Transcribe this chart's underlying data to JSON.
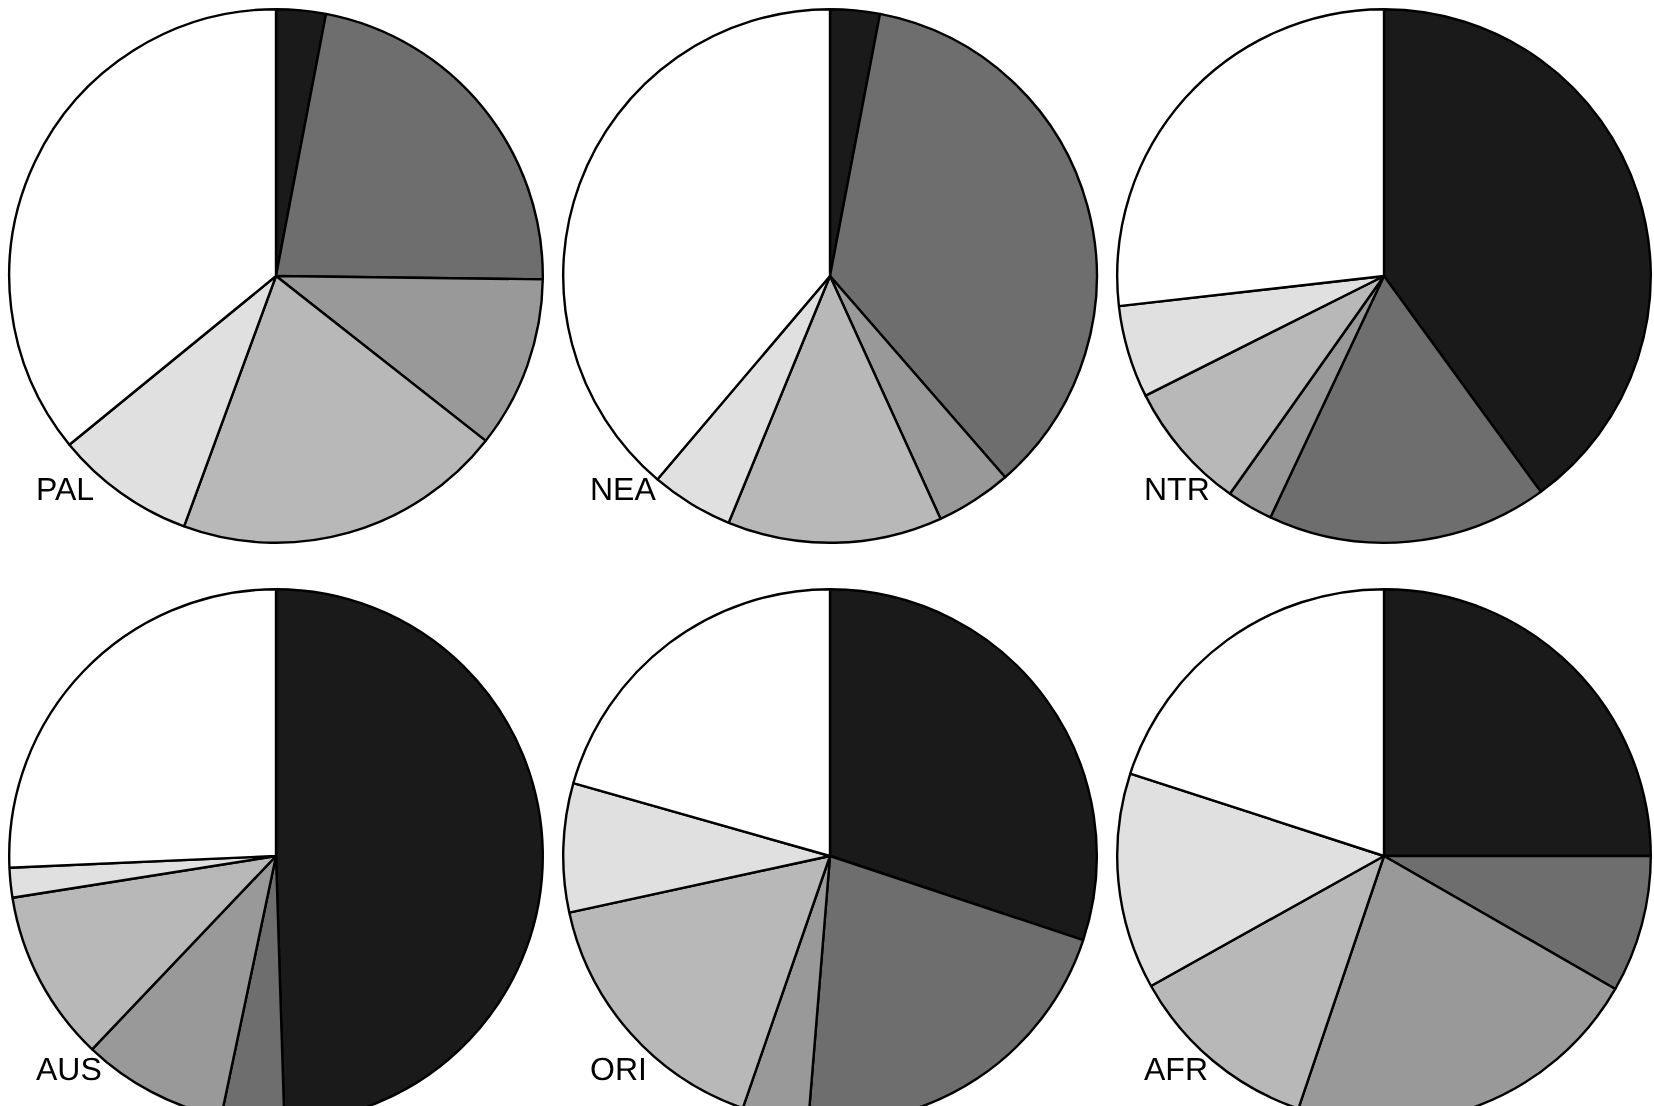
{
  "chart_data": [
    {
      "type": "pie",
      "title": "PAL",
      "categories": [
        null,
        null,
        null,
        null,
        null,
        null
      ],
      "values": [
        3,
        22.2,
        10.4,
        20,
        8.5,
        35.9
      ],
      "colors": [
        "#1a1a1a",
        "#6e6e6e",
        "#999999",
        "#b8b8b8",
        "#e0e0e0",
        "#ffffff"
      ]
    },
    {
      "type": "pie",
      "title": "NEA",
      "categories": [
        null,
        null,
        null,
        null,
        null,
        null
      ],
      "values": [
        3,
        35.6,
        4.6,
        13,
        5,
        38.8
      ],
      "colors": [
        "#1a1a1a",
        "#6e6e6e",
        "#999999",
        "#b8b8b8",
        "#e0e0e0",
        "#ffffff"
      ]
    },
    {
      "type": "pie",
      "title": "NTR",
      "categories": [
        null,
        null,
        null,
        null,
        null,
        null
      ],
      "values": [
        40,
        17,
        2.8,
        7.8,
        5.6,
        26.8
      ],
      "colors": [
        "#1a1a1a",
        "#6e6e6e",
        "#999999",
        "#b8b8b8",
        "#e0e0e0",
        "#ffffff"
      ]
    },
    {
      "type": "pie",
      "title": "AUS",
      "categories": [
        null,
        null,
        null,
        null,
        null,
        null
      ],
      "values": [
        49.5,
        3.8,
        8.8,
        10.4,
        1.8,
        25.7
      ],
      "colors": [
        "#1a1a1a",
        "#6e6e6e",
        "#999999",
        "#b8b8b8",
        "#e0e0e0",
        "#ffffff"
      ]
    },
    {
      "type": "pie",
      "title": "ORI",
      "categories": [
        null,
        null,
        null,
        null,
        null,
        null
      ],
      "values": [
        30.1,
        21.2,
        4,
        16.3,
        7.8,
        20.6
      ],
      "colors": [
        "#1a1a1a",
        "#6e6e6e",
        "#999999",
        "#b8b8b8",
        "#e0e0e0",
        "#ffffff"
      ]
    },
    {
      "type": "pie",
      "title": "AFR",
      "categories": [
        null,
        null,
        null,
        null,
        null,
        null
      ],
      "values": [
        25,
        8.3,
        21.9,
        11.7,
        13.1,
        20
      ],
      "colors": [
        "#1a1a1a",
        "#6e6e6e",
        "#999999",
        "#b8b8b8",
        "#e0e0e0",
        "#ffffff"
      ]
    }
  ]
}
